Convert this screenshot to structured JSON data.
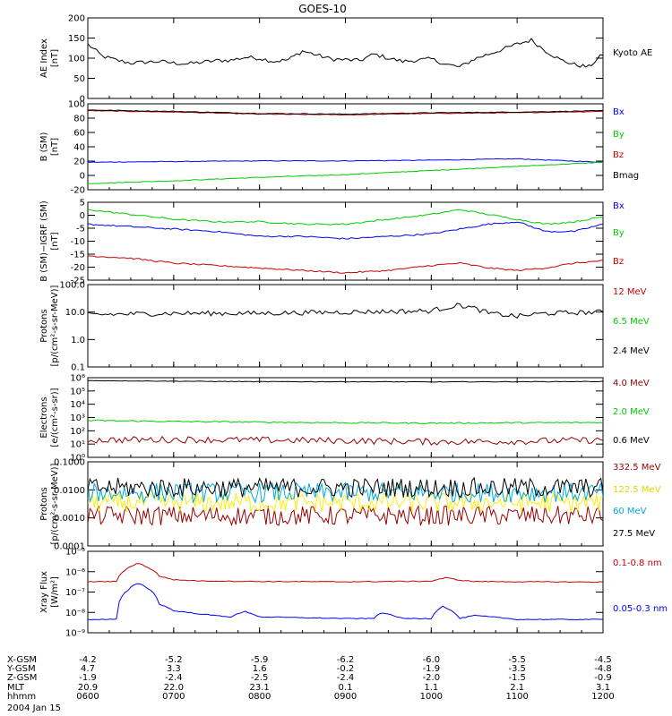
{
  "title": "GOES-10",
  "date_label": "2004 Jan 15",
  "colors": {
    "black": "#000000",
    "blue": "#0000ff",
    "green": "#00cc00",
    "red": "#cc0000",
    "darkred": "#990000",
    "cyan": "#00aadd",
    "yellow": "#ffee00"
  },
  "xaxis": {
    "ticks": [
      0,
      60,
      120,
      180,
      240,
      300,
      360
    ],
    "ephemeris": [
      {
        "label": "X-GSM",
        "values": [
          "-4.2",
          "-5.2",
          "-5.9",
          "-6.2",
          "-6.0",
          "-5.5",
          "-4.5"
        ]
      },
      {
        "label": "Y-GSM",
        "values": [
          "4.7",
          "3.3",
          "1.6",
          "-0.2",
          "-1.9",
          "-3.5",
          "-4.8"
        ]
      },
      {
        "label": "Z-GSM",
        "values": [
          "-1.9",
          "-2.4",
          "-2.5",
          "-2.4",
          "-2.0",
          "-1.5",
          "-0.9"
        ]
      },
      {
        "label": "MLT",
        "values": [
          "20.9",
          "22.0",
          "23.1",
          "0.1",
          "1.1",
          "2.1",
          "3.1"
        ]
      },
      {
        "label": "hhmm",
        "values": [
          "0600",
          "0700",
          "0800",
          "0900",
          "1000",
          "1100",
          "1200"
        ]
      }
    ]
  },
  "chart_data": [
    {
      "type": "line",
      "ylabel": "AE Index\n[nT]",
      "ylim": [
        0,
        200
      ],
      "yticks": [
        "0",
        "50",
        "100",
        "150",
        "200"
      ],
      "series": [
        {
          "name": "Kyoto AE",
          "color": "#000000",
          "x": [
            0,
            10,
            20,
            30,
            40,
            50,
            60,
            70,
            80,
            90,
            100,
            110,
            120,
            130,
            140,
            150,
            160,
            170,
            180,
            190,
            200,
            210,
            220,
            230,
            240,
            250,
            260,
            270,
            280,
            290,
            300,
            310,
            320,
            330,
            340,
            350,
            360
          ],
          "y": [
            135,
            105,
            95,
            88,
            90,
            92,
            88,
            86,
            90,
            94,
            95,
            102,
            100,
            92,
            96,
            118,
            108,
            98,
            96,
            94,
            110,
            100,
            92,
            95,
            98,
            85,
            78,
            98,
            110,
            122,
            135,
            145,
            118,
            96,
            84,
            78,
            110
          ]
        }
      ]
    },
    {
      "type": "line",
      "ylabel": "B (SM)\n[nT]",
      "ylim": [
        -25,
        100
      ],
      "yticks": [
        "-20",
        "0",
        "20",
        "40",
        "60",
        "80",
        "100"
      ],
      "series": [
        {
          "name": "Bx",
          "color": "#0000ff",
          "x": [
            0,
            60,
            120,
            180,
            240,
            300,
            360
          ],
          "y": [
            15,
            16,
            17,
            17,
            18,
            20,
            15
          ]
        },
        {
          "name": "By",
          "color": "#00cc00",
          "x": [
            0,
            60,
            120,
            180,
            240,
            300,
            360
          ],
          "y": [
            -16,
            -12,
            -7,
            -3,
            3,
            9,
            15
          ]
        },
        {
          "name": "Bz",
          "color": "#cc0000",
          "x": [
            0,
            60,
            120,
            180,
            240,
            300,
            360
          ],
          "y": [
            90,
            88,
            85,
            84,
            86,
            87,
            89
          ]
        },
        {
          "name": "Bmag",
          "color": "#000000",
          "x": [
            0,
            60,
            120,
            180,
            240,
            300,
            360
          ],
          "y": [
            91,
            89,
            86,
            85,
            87,
            88,
            90
          ]
        }
      ]
    },
    {
      "type": "line",
      "ylabel": "B (SM)−IGRF (SM)\n[nT]",
      "ylim": [
        -26,
        6
      ],
      "yticks": [
        "-25",
        "-20",
        "-15",
        "-10",
        "-5",
        "0",
        "5"
      ],
      "series": [
        {
          "name": "Bx",
          "color": "#0000ff",
          "x": [
            0,
            30,
            60,
            90,
            120,
            150,
            180,
            210,
            240,
            260,
            280,
            300,
            320,
            340,
            360
          ],
          "y": [
            -3,
            -4,
            -5,
            -6,
            -8,
            -8,
            -9,
            -8,
            -7,
            -5,
            -3,
            -2,
            -6,
            -6,
            -3
          ]
        },
        {
          "name": "By",
          "color": "#00cc00",
          "x": [
            0,
            30,
            60,
            90,
            120,
            150,
            180,
            210,
            240,
            260,
            280,
            300,
            320,
            340,
            360
          ],
          "y": [
            3,
            1,
            -1,
            -2,
            -2,
            -3,
            -3,
            -1,
            1,
            3,
            1,
            -1,
            -3,
            -2,
            0
          ]
        },
        {
          "name": "Bz",
          "color": "#cc0000",
          "x": [
            0,
            30,
            60,
            90,
            120,
            150,
            180,
            210,
            240,
            260,
            280,
            300,
            320,
            340,
            360
          ],
          "y": [
            -16,
            -17,
            -19,
            -20,
            -21,
            -22,
            -23,
            -22,
            -20,
            -19,
            -21,
            -22,
            -21,
            -19,
            -18
          ]
        }
      ]
    },
    {
      "type": "line",
      "scale": "log",
      "ylabel": "Protons\n[p/(cm²-s-sr-MeV)]",
      "ylim": [
        0.1,
        100
      ],
      "yticks": [
        "0.1",
        "1.0",
        "10.0",
        "100.0"
      ],
      "series": [
        {
          "name": "12 MeV",
          "color": "#cc0000",
          "x": [],
          "y": []
        },
        {
          "name": "6.5 MeV",
          "color": "#00cc00",
          "x": [],
          "y": []
        },
        {
          "name": "2.4 MeV",
          "color": "#000000",
          "x": [
            0,
            60,
            120,
            180,
            240,
            260,
            280,
            300,
            320,
            360
          ],
          "y": [
            8,
            9,
            9,
            10,
            11,
            18,
            9,
            7,
            9,
            10
          ]
        }
      ]
    },
    {
      "type": "line",
      "scale": "log",
      "ylabel": "Electrons\n[e/(cm²-s-sr)]",
      "ylim": [
        1,
        1000000
      ],
      "yticks": [
        "10⁰",
        "10¹",
        "10²",
        "10³",
        "10⁴",
        "10⁵",
        "10⁶"
      ],
      "series": [
        {
          "name": "4.0 MeV",
          "color": "#990000",
          "x": [
            0,
            60,
            120,
            180,
            240,
            300,
            360
          ],
          "y": [
            20,
            22,
            20,
            18,
            15,
            16,
            20
          ]
        },
        {
          "name": "2.0 MeV",
          "color": "#00cc00",
          "x": [
            0,
            60,
            120,
            180,
            240,
            300,
            360
          ],
          "y": [
            600,
            500,
            450,
            400,
            380,
            400,
            420
          ]
        },
        {
          "name": "0.6 MeV",
          "color": "#000000",
          "x": [
            0,
            60,
            120,
            180,
            240,
            300,
            360
          ],
          "y": [
            600000,
            550000,
            500000,
            500000,
            480000,
            500000,
            520000
          ]
        }
      ]
    },
    {
      "type": "line",
      "scale": "log",
      "ylabel": "Protons\n[p/(cm²-s-sr-MeV)]",
      "ylim": [
        0.0001,
        0.1
      ],
      "yticks": [
        "0.0001",
        "0.0010",
        "0.0100",
        "0.1000"
      ],
      "series": [
        {
          "name": "332.5 MeV",
          "color": "#990000",
          "x": [
            0,
            180,
            360
          ],
          "y": [
            0.0012,
            0.0012,
            0.0012
          ]
        },
        {
          "name": "122.5 MeV",
          "color": "#ffee00",
          "x": [
            0,
            180,
            360
          ],
          "y": [
            0.0035,
            0.0035,
            0.0035
          ]
        },
        {
          "name": "60 MeV",
          "color": "#00aadd",
          "x": [
            0,
            180,
            360
          ],
          "y": [
            0.008,
            0.008,
            0.008
          ]
        },
        {
          "name": "27.5 MeV",
          "color": "#000000",
          "x": [
            0,
            180,
            360
          ],
          "y": [
            0.012,
            0.012,
            0.012
          ]
        }
      ]
    },
    {
      "type": "line",
      "scale": "log",
      "ylabel": "Xray Flux\n[W/m²]",
      "ylim": [
        1e-09,
        1e-05
      ],
      "yticks": [
        "10⁻⁹",
        "10⁻⁸",
        "10⁻⁷",
        "10⁻⁶",
        "10⁻⁵"
      ],
      "series": [
        {
          "name": "0.1-0.8 nm",
          "color": "#cc0000",
          "x": [
            0,
            20,
            28,
            35,
            42,
            50,
            60,
            80,
            120,
            180,
            240,
            250,
            260,
            270,
            300,
            360
          ],
          "y": [
            3.2e-07,
            3.3e-07,
            1.5e-06,
            2.6e-06,
            1.6e-06,
            6e-07,
            4e-07,
            3.5e-07,
            3.3e-07,
            3.2e-07,
            3.4e-07,
            5e-07,
            3.8e-07,
            3.3e-07,
            3.2e-07,
            3.1e-07
          ]
        },
        {
          "name": "0.05-0.3 nm",
          "color": "#0000ff",
          "x": [
            0,
            20,
            28,
            35,
            42,
            50,
            60,
            80,
            100,
            110,
            120,
            180,
            200,
            205,
            210,
            220,
            240,
            248,
            254,
            260,
            270,
            300,
            360
          ],
          "y": [
            4.5e-09,
            4.6e-09,
            1.2e-07,
            2.8e-07,
            1.5e-07,
            2.5e-08,
            1.2e-08,
            8e-09,
            6e-09,
            1.1e-08,
            6e-09,
            5e-09,
            5e-09,
            1e-08,
            8e-09,
            5e-09,
            5e-09,
            2e-08,
            1.2e-08,
            5e-09,
            7e-09,
            4.5e-09,
            4.5e-09
          ]
        }
      ]
    }
  ]
}
